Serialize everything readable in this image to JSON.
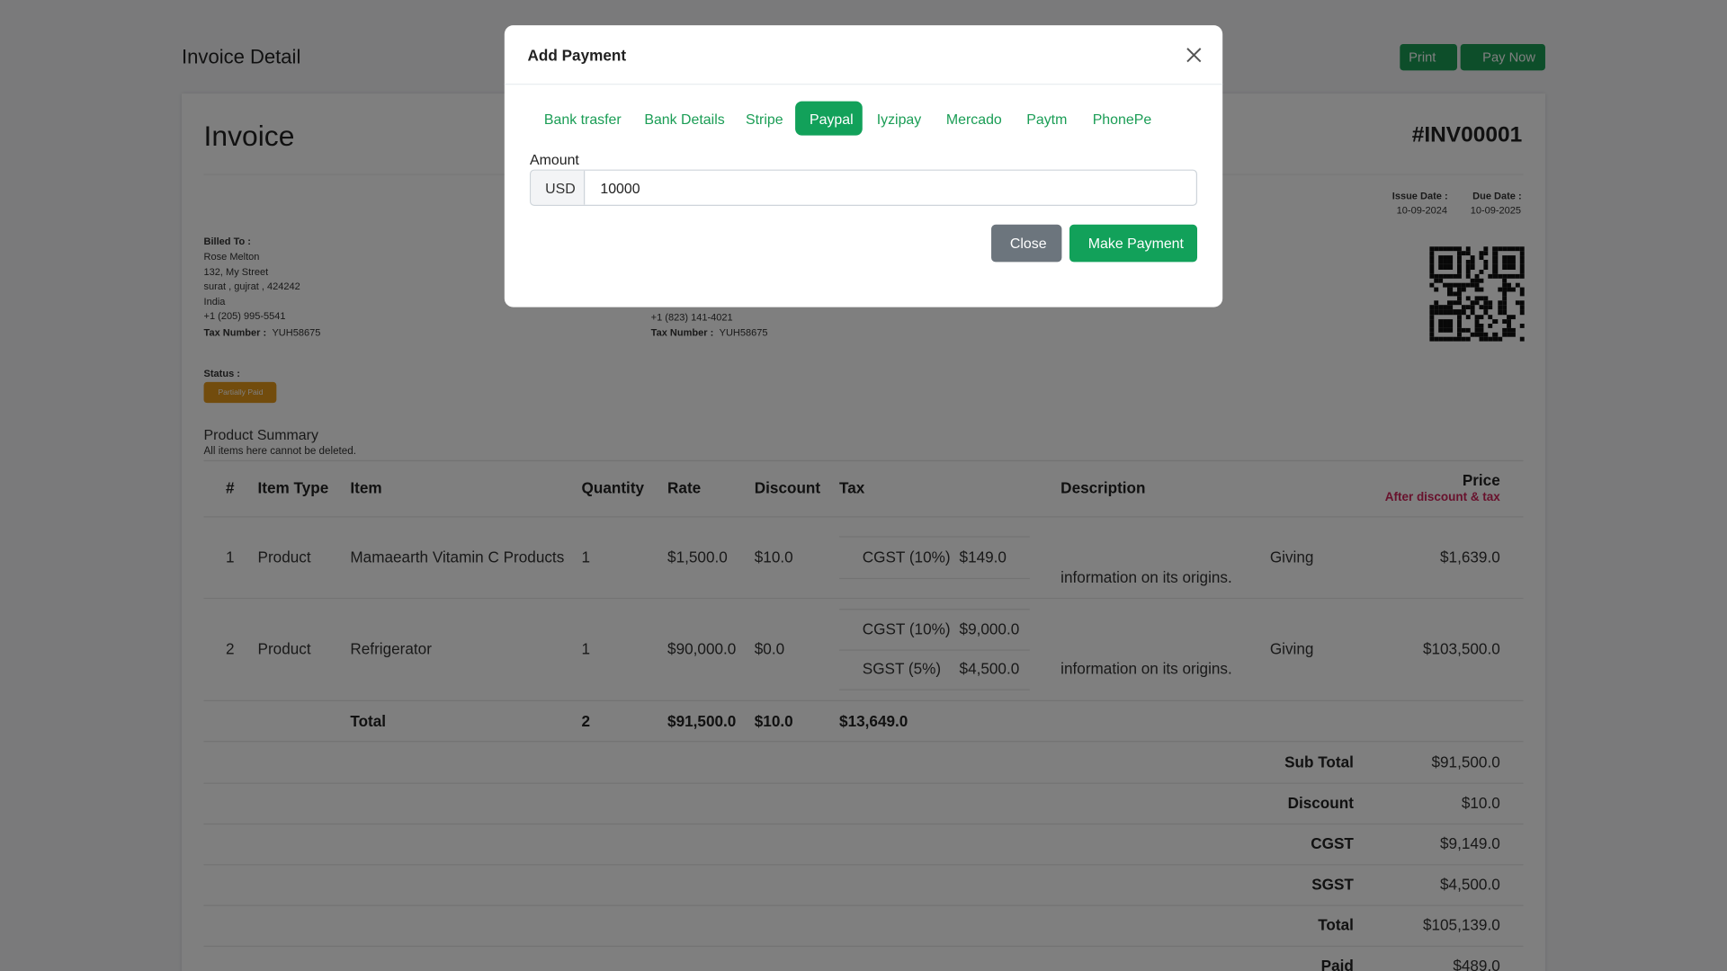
{
  "header": {
    "title": "Invoice Detail",
    "print": "Print",
    "pay_now": "Pay Now"
  },
  "invoice": {
    "heading": "Invoice",
    "number": "#INV00001",
    "issue_date_label": "Issue Date :",
    "issue_date": "10-09-2024",
    "due_date_label": "Due Date :",
    "due_date": "10-09-2025"
  },
  "billed_to": {
    "label": "Billed To :",
    "lines": [
      "Rose Melton",
      "132, My Street",
      "surat , gujrat , 424242",
      "India",
      "+1 (205) 995-5541"
    ],
    "tax_label": "Tax Number :",
    "tax_number": "YUH58675"
  },
  "billed_from": {
    "lines": [
      "+1 (823) 141-4021"
    ],
    "tax_label": "Tax Number :",
    "tax_number": "YUH58675"
  },
  "status": {
    "label": "Status :",
    "badge": "Partially Paid"
  },
  "summary": {
    "title": "Product Summary",
    "subtitle": "All items here cannot be deleted."
  },
  "table": {
    "headers": [
      "#",
      "Item Type",
      "Item",
      "Quantity",
      "Rate",
      "Discount",
      "Tax",
      "Description",
      "Price"
    ],
    "price_note": "After discount & tax",
    "rows": [
      {
        "cells": [
          "1",
          "Product",
          "Mamaearth Vitamin C Products",
          "1",
          "$1,500.0",
          "$10.0"
        ],
        "taxes": [
          [
            "CGST (10%)",
            "$149.0"
          ]
        ],
        "description": [
          "Giving",
          "information on its origins."
        ],
        "price": "$1,639.0"
      },
      {
        "cells": [
          "2",
          "Product",
          "Refrigerator",
          "1",
          "$90,000.0",
          "$0.0"
        ],
        "taxes": [
          [
            "CGST (10%)",
            "$9,000.0"
          ],
          [
            "SGST (5%)",
            "$4,500.0"
          ]
        ],
        "description": [
          "Giving",
          "information on its origins."
        ],
        "price": "$103,500.0"
      }
    ],
    "total": [
      "Total",
      "2",
      "$91,500.0",
      "$10.0",
      "$13,649.0"
    ],
    "totals": [
      [
        "Sub Total",
        "$91,500.0"
      ],
      [
        "Discount",
        "$10.0"
      ],
      [
        "CGST",
        "$9,149.0"
      ],
      [
        "SGST",
        "$4,500.0"
      ],
      [
        "Total",
        "$105,139.0"
      ],
      [
        "Paid",
        "$489.0"
      ]
    ]
  },
  "modal": {
    "title": "Add Payment",
    "tabs": [
      "Bank trasfer",
      "Bank Details",
      "Stripe",
      "Paypal",
      "Iyzipay",
      "Mercado",
      "Paytm",
      "PhonePe"
    ],
    "active_tab": 3,
    "amount_label": "Amount",
    "currency": "USD",
    "amount": "10000",
    "close": "Close",
    "submit": "Make Payment"
  }
}
